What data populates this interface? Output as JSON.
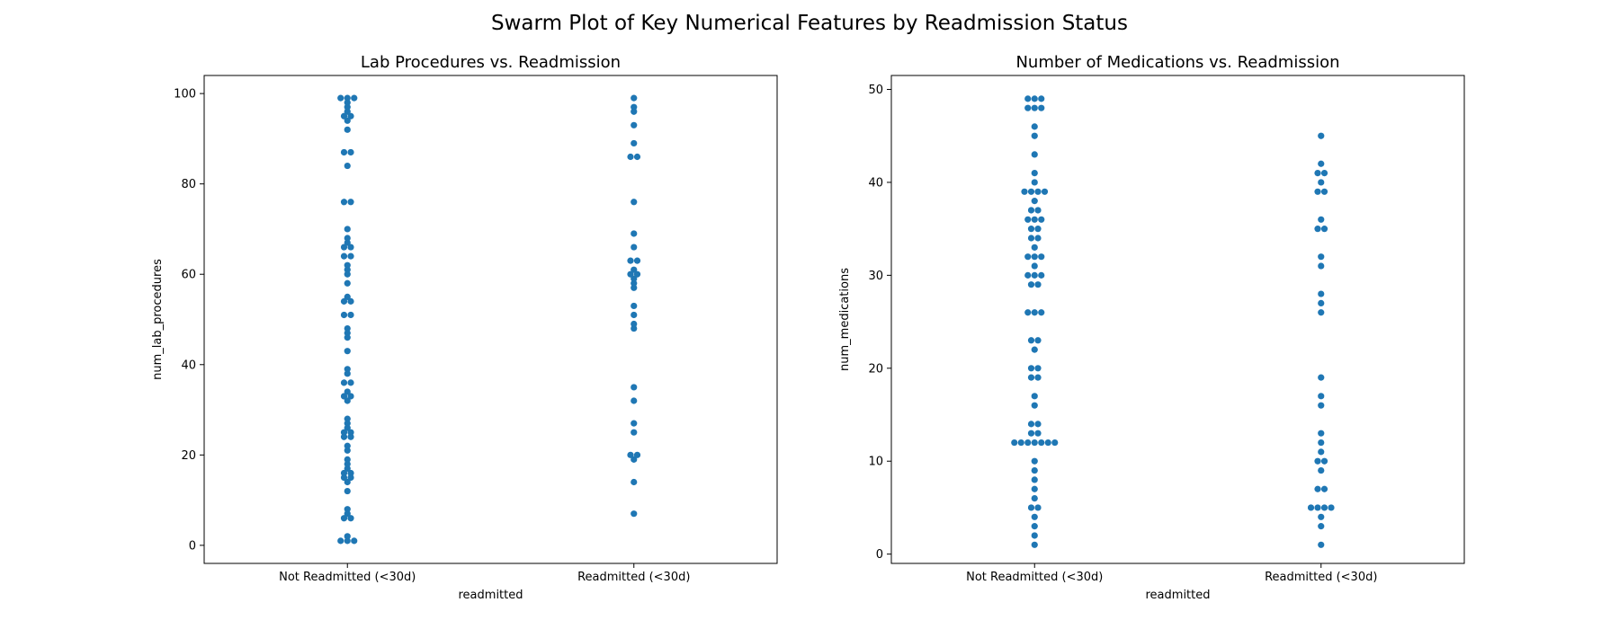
{
  "suptitle": "Swarm Plot of Key Numerical Features by Readmission Status",
  "colors": {
    "point": "#1f77b4",
    "axis": "#000000"
  },
  "chart_data": [
    {
      "type": "scatter",
      "subtype": "swarm",
      "title": "Lab Procedures vs. Readmission",
      "xlabel": "readmitted",
      "ylabel": "num_lab_procedures",
      "categories": [
        "Not Readmitted (<30d)",
        "Readmitted (<30d)"
      ],
      "ylim": [
        -4,
        104
      ],
      "yticks": [
        0,
        20,
        40,
        60,
        80,
        100
      ],
      "grid": false,
      "series": [
        {
          "values": [
            1,
            1,
            1,
            2,
            6,
            6,
            7,
            8,
            12,
            14,
            15,
            15,
            16,
            16,
            17,
            18,
            19,
            21,
            22,
            24,
            24,
            25,
            25,
            26,
            27,
            28,
            32,
            33,
            33,
            34,
            36,
            36,
            38,
            39,
            43,
            46,
            47,
            48,
            51,
            51,
            54,
            54,
            55,
            58,
            60,
            61,
            62,
            64,
            64,
            66,
            66,
            67,
            68,
            70,
            76,
            76,
            84,
            87,
            87,
            92,
            94,
            95,
            95,
            96,
            97,
            98,
            99,
            99,
            99
          ]
        },
        {
          "values": [
            7,
            14,
            19,
            20,
            20,
            25,
            27,
            32,
            35,
            48,
            49,
            51,
            53,
            57,
            58,
            59,
            60,
            60,
            61,
            63,
            63,
            66,
            69,
            76,
            86,
            86,
            89,
            93,
            96,
            97,
            99
          ]
        }
      ]
    },
    {
      "type": "scatter",
      "subtype": "swarm",
      "title": "Number of Medications vs. Readmission",
      "xlabel": "readmitted",
      "ylabel": "num_medications",
      "categories": [
        "Not Readmitted (<30d)",
        "Readmitted (<30d)"
      ],
      "ylim": [
        -1,
        51.5
      ],
      "yticks": [
        0,
        10,
        20,
        30,
        40,
        50
      ],
      "grid": false,
      "series": [
        {
          "values": [
            1,
            2,
            3,
            4,
            5,
            5,
            6,
            7,
            8,
            9,
            10,
            12,
            12,
            12,
            12,
            12,
            12,
            12,
            13,
            13,
            14,
            14,
            16,
            17,
            19,
            19,
            20,
            20,
            22,
            23,
            23,
            26,
            26,
            26,
            29,
            29,
            30,
            30,
            30,
            31,
            32,
            32,
            32,
            33,
            34,
            34,
            35,
            35,
            36,
            36,
            36,
            37,
            37,
            38,
            39,
            39,
            39,
            39,
            40,
            41,
            43,
            45,
            46,
            48,
            48,
            48,
            49,
            49,
            49
          ]
        },
        {
          "values": [
            1,
            3,
            4,
            5,
            5,
            5,
            5,
            7,
            7,
            9,
            10,
            10,
            11,
            12,
            13,
            16,
            17,
            19,
            26,
            27,
            28,
            31,
            32,
            35,
            35,
            36,
            39,
            39,
            40,
            41,
            41,
            42,
            45
          ]
        }
      ]
    }
  ]
}
